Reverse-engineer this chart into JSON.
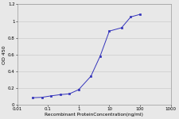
{
  "x": [
    0.031,
    0.063,
    0.125,
    0.25,
    0.5,
    1,
    2.5,
    5,
    10,
    25,
    50,
    100
  ],
  "y": [
    0.083,
    0.088,
    0.105,
    0.12,
    0.13,
    0.18,
    0.34,
    0.58,
    0.88,
    0.92,
    1.05,
    1.08
  ],
  "xlim": [
    0.01,
    1000
  ],
  "ylim": [
    0,
    1.2
  ],
  "yticks": [
    0,
    0.2,
    0.4,
    0.6,
    0.8,
    1.0,
    1.2
  ],
  "xticks": [
    0.01,
    0.1,
    1,
    10,
    100,
    1000
  ],
  "xticklabels": [
    "0.01",
    "0.1",
    "1",
    "10",
    "100",
    "1000"
  ],
  "xlabel": "Recombinant ProteinConcentration(ng/ml)",
  "ylabel": "OD 450",
  "line_color": "#3333bb",
  "marker_color": "#3333bb",
  "grid_color": "#cccccc",
  "background_color": "#e8e8e8",
  "plot_bg_color": "#e8e8e8"
}
